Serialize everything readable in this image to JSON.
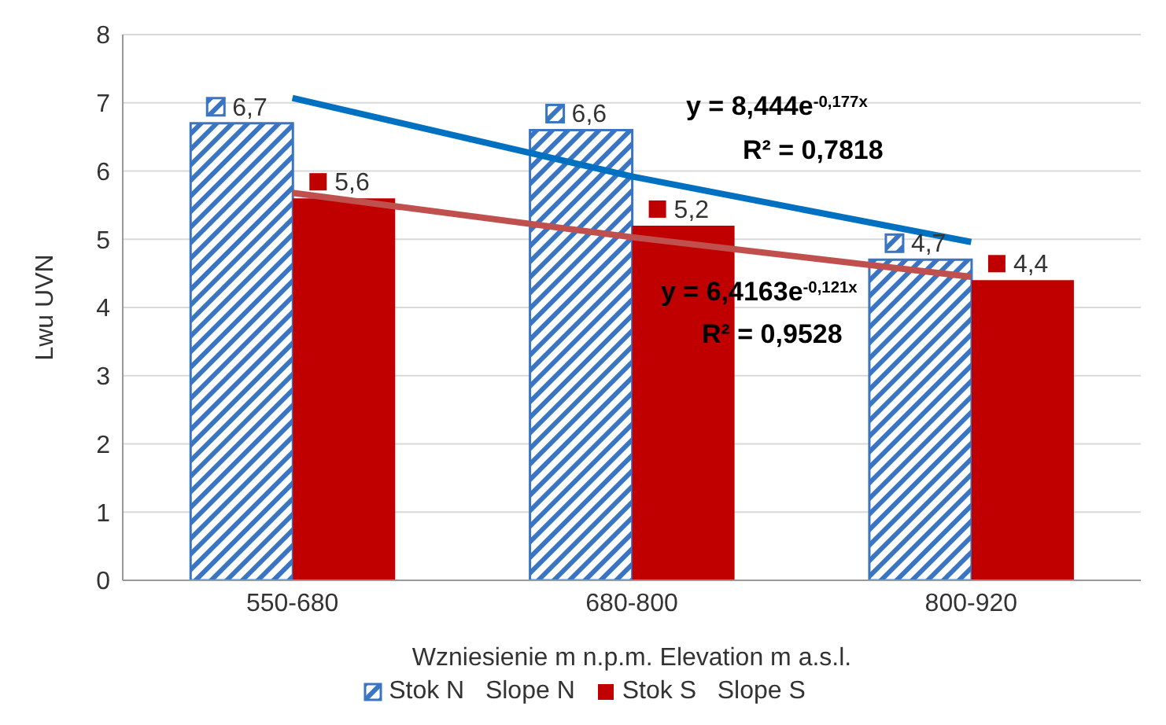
{
  "chart_data": {
    "type": "bar",
    "xlabel": "Wzniesienie m n.p.m. Elevation m a.s.l.",
    "ylabel": "Lwu UVN",
    "categories": [
      "550-680",
      "680-800",
      "800-920"
    ],
    "series": [
      {
        "name": "Stok N   Slope N",
        "color": "#3a75c4",
        "values": [
          6.7,
          6.6,
          4.7
        ],
        "value_labels": [
          "6,7",
          "6,6",
          "4,7"
        ]
      },
      {
        "name": "Stok S   Slope S",
        "color": "#c00000",
        "values": [
          5.6,
          5.2,
          4.4
        ],
        "value_labels": [
          "5,6",
          "5,2",
          "4,4"
        ]
      },
      {
        "type": "line",
        "color": "#0070c0",
        "values": [
          7.07,
          5.92,
          4.96
        ]
      },
      {
        "type": "line",
        "color": "#c0504d",
        "values": [
          5.68,
          5.03,
          4.45
        ]
      }
    ],
    "annotations": [
      "y = 8,444e$^{-0,177x}$",
      "R² = 0,7818",
      "y = 6,4163e$^{-0,121x}$",
      "R² = 0,9528"
    ],
    "ylim": [
      0,
      8
    ],
    "yticks": [
      0,
      1,
      2,
      3,
      4,
      5,
      6,
      7,
      8
    ],
    "grid": "y",
    "legend": "bottom"
  }
}
